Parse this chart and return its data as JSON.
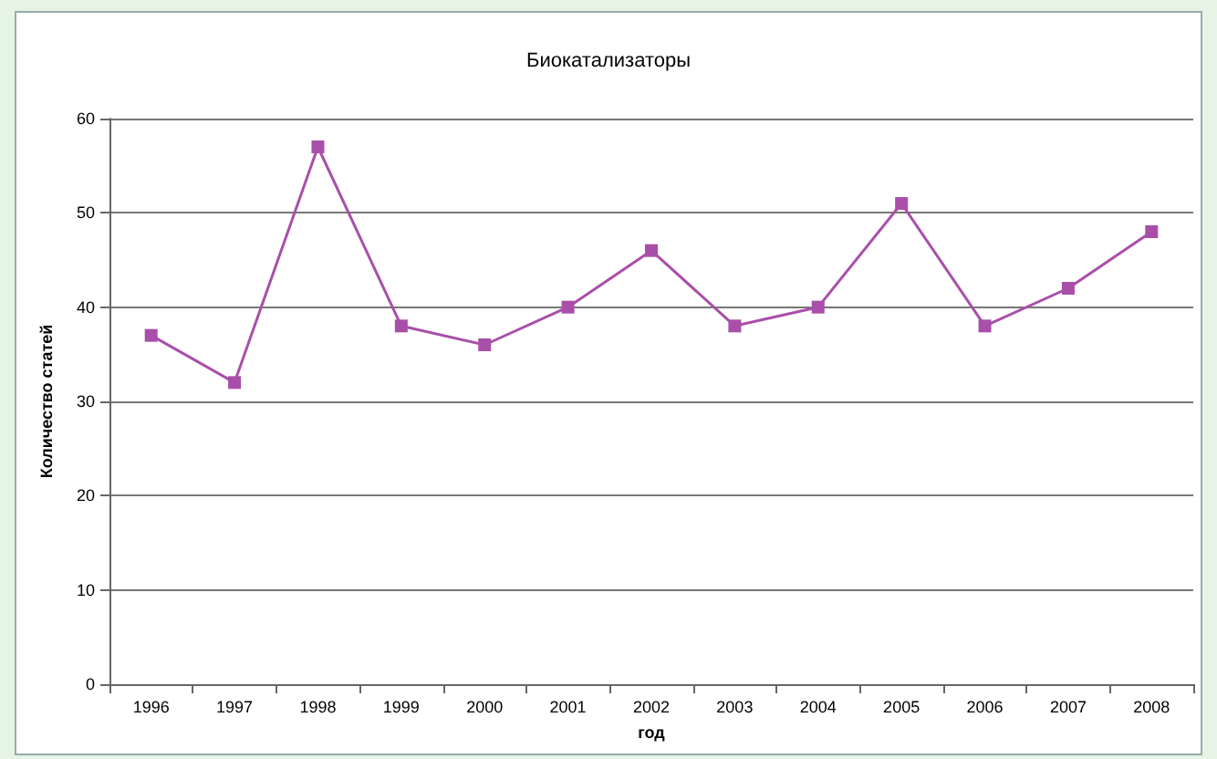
{
  "chart_data": {
    "type": "line",
    "title": "Биокатализаторы",
    "xlabel": "год",
    "ylabel": "Количество статей",
    "categories": [
      "1996",
      "1997",
      "1998",
      "1999",
      "2000",
      "2001",
      "2002",
      "2003",
      "2004",
      "2005",
      "2006",
      "2007",
      "2008"
    ],
    "series": [
      {
        "color": "#a94fa9",
        "values": [
          37,
          32,
          57,
          38,
          36,
          40,
          46,
          38,
          40,
          51,
          38,
          42,
          48
        ]
      }
    ],
    "ylim": [
      0,
      60
    ],
    "yticks": [
      0,
      10,
      20,
      30,
      40,
      50,
      60
    ],
    "grid": "y",
    "marker": "square",
    "line_style": "solid"
  }
}
